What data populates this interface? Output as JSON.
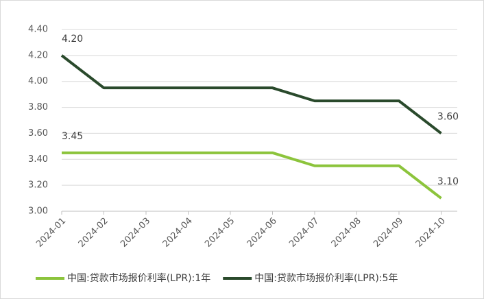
{
  "chart_data": {
    "type": "line",
    "categories": [
      "2024-01",
      "2024-02",
      "2024-03",
      "2024-04",
      "2024-05",
      "2024-06",
      "2024-07",
      "2024-08",
      "2024-09",
      "2024-10"
    ],
    "series": [
      {
        "name": "中国:贷款市场报价利率(LPR):1年",
        "color": "#8cc43c",
        "values": [
          3.45,
          3.45,
          3.45,
          3.45,
          3.45,
          3.45,
          3.35,
          3.35,
          3.35,
          3.1
        ],
        "value_labels": [
          "3.45",
          null,
          null,
          null,
          null,
          null,
          null,
          null,
          null,
          "3.10"
        ]
      },
      {
        "name": "中国:贷款市场报价利率(LPR):5年",
        "color": "#2a4a2c",
        "values": [
          4.2,
          3.95,
          3.95,
          3.95,
          3.95,
          3.95,
          3.85,
          3.85,
          3.85,
          3.6
        ],
        "value_labels": [
          "4.20",
          null,
          null,
          null,
          null,
          null,
          null,
          null,
          null,
          "3.60"
        ]
      }
    ],
    "ylim": [
      3.0,
      4.4
    ],
    "yticks": [
      {
        "value": 3.0,
        "label": "3.00"
      },
      {
        "value": 3.2,
        "label": "3.20"
      },
      {
        "value": 3.4,
        "label": "3.40"
      },
      {
        "value": 3.6,
        "label": "3.60"
      },
      {
        "value": 3.8,
        "label": "3.80"
      },
      {
        "value": 4.0,
        "label": "4.00"
      },
      {
        "value": 4.2,
        "label": "4.20"
      },
      {
        "value": 4.4,
        "label": "4.40"
      }
    ],
    "grid": true,
    "legend": "bottom"
  }
}
